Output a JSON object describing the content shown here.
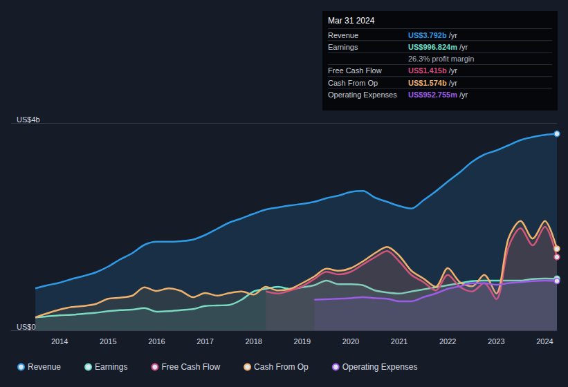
{
  "chart_data": {
    "type": "area",
    "x": [
      2013.5,
      2013.75,
      2014,
      2014.25,
      2014.5,
      2014.75,
      2015,
      2015.25,
      2015.5,
      2015.75,
      2016,
      2016.25,
      2016.5,
      2016.75,
      2017,
      2017.25,
      2017.5,
      2017.75,
      2018,
      2018.25,
      2018.5,
      2018.75,
      2019,
      2019.25,
      2019.5,
      2019.75,
      2020,
      2020.25,
      2020.5,
      2020.75,
      2021,
      2021.25,
      2021.5,
      2021.75,
      2022,
      2022.25,
      2022.5,
      2022.75,
      2023,
      2023.25,
      2023.5,
      2023.75,
      2024,
      2024.25
    ],
    "xlim": [
      2013,
      2024.25
    ],
    "xticks": [
      2014,
      2015,
      2016,
      2017,
      2018,
      2019,
      2020,
      2021,
      2022,
      2023,
      2024
    ],
    "ylim": [
      0,
      4
    ],
    "yticks": [
      {
        "value": 0,
        "label": "US$0"
      },
      {
        "value": 4,
        "label": "US$4b"
      }
    ],
    "grid": true,
    "legend": "bottom",
    "series": [
      {
        "name": "Revenue",
        "color": "#2f9be6",
        "values": [
          0.81,
          0.87,
          0.92,
          0.99,
          1.05,
          1.12,
          1.23,
          1.37,
          1.49,
          1.65,
          1.71,
          1.71,
          1.72,
          1.75,
          1.84,
          1.96,
          2.08,
          2.16,
          2.25,
          2.33,
          2.37,
          2.41,
          2.44,
          2.48,
          2.55,
          2.6,
          2.67,
          2.69,
          2.56,
          2.48,
          2.4,
          2.35,
          2.51,
          2.68,
          2.87,
          3.05,
          3.25,
          3.39,
          3.47,
          3.57,
          3.67,
          3.73,
          3.77,
          3.792
        ]
      },
      {
        "name": "Earnings",
        "color": "#6fe0cb",
        "values": [
          0.25,
          0.27,
          0.29,
          0.3,
          0.32,
          0.34,
          0.37,
          0.39,
          0.4,
          0.43,
          0.36,
          0.37,
          0.39,
          0.41,
          0.47,
          0.48,
          0.49,
          0.59,
          0.75,
          0.8,
          0.84,
          0.8,
          0.83,
          0.87,
          0.96,
          0.89,
          0.89,
          0.87,
          0.77,
          0.73,
          0.71,
          0.75,
          0.79,
          0.83,
          0.87,
          0.91,
          0.95,
          0.96,
          0.96,
          0.96,
          0.96,
          0.99,
          1.0,
          0.996824
        ]
      },
      {
        "name": "Free Cash Flow",
        "color": "#d24b7e",
        "values": [
          null,
          null,
          null,
          null,
          null,
          null,
          null,
          null,
          null,
          null,
          null,
          null,
          null,
          null,
          null,
          null,
          null,
          null,
          null,
          0.75,
          0.71,
          0.77,
          0.85,
          0.99,
          1.13,
          1.08,
          1.13,
          1.27,
          1.41,
          1.53,
          1.33,
          1.07,
          0.93,
          0.77,
          1.07,
          0.84,
          0.75,
          0.91,
          0.6,
          1.6,
          1.97,
          1.64,
          2.0,
          1.415
        ]
      },
      {
        "name": "Cash From Op",
        "color": "#f0b16c",
        "values": [
          0.25,
          0.33,
          0.4,
          0.45,
          0.47,
          0.51,
          0.61,
          0.63,
          0.67,
          0.83,
          0.76,
          0.81,
          0.76,
          0.64,
          0.72,
          0.67,
          0.72,
          0.75,
          0.69,
          0.84,
          0.77,
          0.8,
          0.91,
          1.04,
          1.19,
          1.15,
          1.2,
          1.33,
          1.49,
          1.61,
          1.44,
          1.15,
          1.0,
          0.84,
          1.2,
          0.93,
          0.85,
          1.07,
          0.71,
          1.77,
          2.11,
          1.77,
          2.11,
          1.574
        ]
      },
      {
        "name": "Operating Expenses",
        "color": "#9d5ce8",
        "values": [
          null,
          null,
          null,
          null,
          null,
          null,
          null,
          null,
          null,
          null,
          null,
          null,
          null,
          null,
          null,
          null,
          null,
          null,
          null,
          null,
          null,
          null,
          null,
          0.59,
          0.6,
          0.61,
          0.62,
          0.64,
          0.62,
          0.61,
          0.56,
          0.56,
          0.64,
          0.71,
          0.8,
          0.85,
          0.91,
          0.91,
          0.88,
          0.91,
          0.93,
          0.95,
          0.96,
          0.952755
        ]
      }
    ],
    "annotation": {
      "title": "Mar 31 2024",
      "rows": [
        {
          "label": "Revenue",
          "value": "US$3.792b",
          "unit": "/yr"
        },
        {
          "label": "Earnings",
          "value": "US$996.824m",
          "unit": "/yr"
        },
        {
          "text": "26.3% profit margin"
        },
        {
          "label": "Free Cash Flow",
          "value": "US$1.415b",
          "unit": "/yr"
        },
        {
          "label": "Cash From Op",
          "value": "US$1.574b",
          "unit": "/yr"
        },
        {
          "label": "Operating Expenses",
          "value": "US$952.755m",
          "unit": "/yr"
        }
      ]
    }
  }
}
